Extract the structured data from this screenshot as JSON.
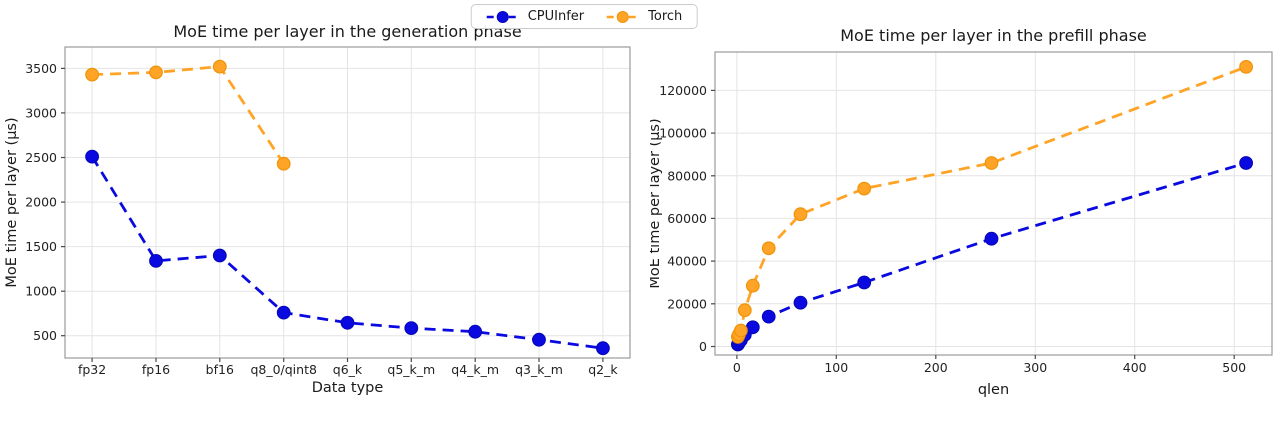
{
  "figure": {
    "legend": {
      "position": "top-center",
      "items": [
        {
          "label": "CPUInfer",
          "color": "#0a0ae0",
          "edge": "#0606bb",
          "marker": "circle",
          "line": "dashed"
        },
        {
          "label": "Torch",
          "color": "#ffa426",
          "edge": "#ef9309",
          "marker": "circle",
          "line": "dashed"
        }
      ]
    }
  },
  "chart_data": [
    {
      "type": "line",
      "title": "MoE time per layer in the generation phase",
      "xlabel": "Data type",
      "ylabel": "MoE time per layer (µs)",
      "x_type": "category",
      "grid": true,
      "line_style": "dashed",
      "marker": "circle",
      "categories": [
        "fp32",
        "fp16",
        "bf16",
        "q8_0/qint8",
        "q6_k",
        "q5_k_m",
        "q4_k_m",
        "q3_k_m",
        "q2_k"
      ],
      "yticks": [
        500,
        1000,
        1500,
        2000,
        2500,
        3000,
        3500
      ],
      "ylim": [
        250,
        3740
      ],
      "series": [
        {
          "name": "CPUInfer",
          "color": "#0a0ae0",
          "edge": "#0606bb",
          "values": [
            2510,
            1340,
            1400,
            760,
            645,
            585,
            545,
            455,
            360
          ]
        },
        {
          "name": "Torch",
          "color": "#ffa426",
          "edge": "#ef9309",
          "values": [
            3430,
            3455,
            3520,
            2430,
            null,
            null,
            null,
            null,
            null
          ]
        }
      ]
    },
    {
      "type": "line",
      "title": "MoE time per layer in the prefill phase",
      "xlabel": "qlen",
      "ylabel": "MoE time per layer (µs)",
      "x_type": "linear",
      "grid": true,
      "line_style": "dashed",
      "marker": "circle",
      "xticks": [
        0,
        100,
        200,
        300,
        400,
        500
      ],
      "xlim": [
        -22,
        538
      ],
      "yticks": [
        0,
        20000,
        40000,
        60000,
        80000,
        100000,
        120000
      ],
      "ylim": [
        -4000,
        138000
      ],
      "series": [
        {
          "name": "CPUInfer",
          "color": "#0a0ae0",
          "edge": "#0606bb",
          "x": [
            1,
            2,
            4,
            8,
            16,
            32,
            64,
            128,
            256,
            512
          ],
          "values": [
            900,
            1700,
            3000,
            5500,
            9000,
            14000,
            20500,
            30000,
            50500,
            86000
          ]
        },
        {
          "name": "Torch",
          "color": "#ffa426",
          "edge": "#ef9309",
          "x": [
            1,
            2,
            4,
            8,
            16,
            32,
            64,
            128,
            256,
            512
          ],
          "values": [
            4500,
            5600,
            7500,
            17000,
            28500,
            46000,
            62000,
            74000,
            86000,
            131000
          ]
        }
      ]
    }
  ]
}
